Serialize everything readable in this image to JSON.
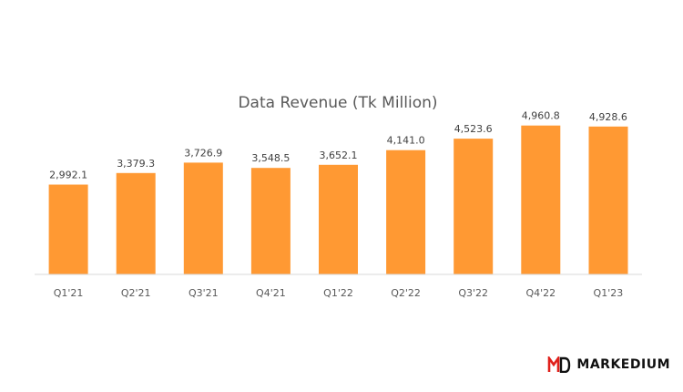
{
  "chart_data": {
    "type": "bar",
    "title": "Data Revenue (Tk Million)",
    "categories": [
      "Q1'21",
      "Q2'21",
      "Q3'21",
      "Q4'21",
      "Q1'22",
      "Q2'22",
      "Q3'22",
      "Q4'22",
      "Q1'23"
    ],
    "values": [
      2992.1,
      3379.3,
      3726.9,
      3548.5,
      3652.1,
      4141.0,
      4523.6,
      4960.8,
      4928.6
    ],
    "value_labels": [
      "2,992.1",
      "3,379.3",
      "3,726.9",
      "3,548.5",
      "3,652.1",
      "4,141.0",
      "4,523.6",
      "4,960.8",
      "4,928.6"
    ],
    "xlabel": "",
    "ylabel": "",
    "ylim": [
      0,
      5500
    ],
    "grid": false,
    "legend": "none",
    "bar_color": "#FF9933",
    "axis_color": "#D9D9D9"
  },
  "brand": {
    "text": "MARKEDIUM",
    "accent_color": "#E0201B"
  }
}
